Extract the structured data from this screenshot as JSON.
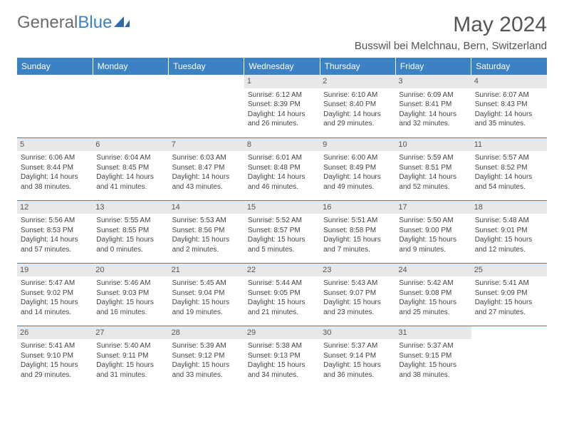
{
  "logo": {
    "text_gray": "General",
    "text_blue": "Blue"
  },
  "title": "May 2024",
  "location": "Busswil bei Melchnau, Bern, Switzerland",
  "colors": {
    "header_bg": "#3b82c4",
    "header_text": "#ffffff",
    "daynum_bg": "#e8e8e8",
    "row_border": "#3b82c4",
    "body_text": "#444444",
    "title_text": "#555555"
  },
  "weekdays": [
    "Sunday",
    "Monday",
    "Tuesday",
    "Wednesday",
    "Thursday",
    "Friday",
    "Saturday"
  ],
  "cells": [
    {
      "day": "",
      "lines": []
    },
    {
      "day": "",
      "lines": []
    },
    {
      "day": "",
      "lines": []
    },
    {
      "day": "1",
      "lines": [
        "Sunrise: 6:12 AM",
        "Sunset: 8:39 PM",
        "Daylight: 14 hours and 26 minutes."
      ]
    },
    {
      "day": "2",
      "lines": [
        "Sunrise: 6:10 AM",
        "Sunset: 8:40 PM",
        "Daylight: 14 hours and 29 minutes."
      ]
    },
    {
      "day": "3",
      "lines": [
        "Sunrise: 6:09 AM",
        "Sunset: 8:41 PM",
        "Daylight: 14 hours and 32 minutes."
      ]
    },
    {
      "day": "4",
      "lines": [
        "Sunrise: 6:07 AM",
        "Sunset: 8:43 PM",
        "Daylight: 14 hours and 35 minutes."
      ]
    },
    {
      "day": "5",
      "lines": [
        "Sunrise: 6:06 AM",
        "Sunset: 8:44 PM",
        "Daylight: 14 hours and 38 minutes."
      ]
    },
    {
      "day": "6",
      "lines": [
        "Sunrise: 6:04 AM",
        "Sunset: 8:45 PM",
        "Daylight: 14 hours and 41 minutes."
      ]
    },
    {
      "day": "7",
      "lines": [
        "Sunrise: 6:03 AM",
        "Sunset: 8:47 PM",
        "Daylight: 14 hours and 43 minutes."
      ]
    },
    {
      "day": "8",
      "lines": [
        "Sunrise: 6:01 AM",
        "Sunset: 8:48 PM",
        "Daylight: 14 hours and 46 minutes."
      ]
    },
    {
      "day": "9",
      "lines": [
        "Sunrise: 6:00 AM",
        "Sunset: 8:49 PM",
        "Daylight: 14 hours and 49 minutes."
      ]
    },
    {
      "day": "10",
      "lines": [
        "Sunrise: 5:59 AM",
        "Sunset: 8:51 PM",
        "Daylight: 14 hours and 52 minutes."
      ]
    },
    {
      "day": "11",
      "lines": [
        "Sunrise: 5:57 AM",
        "Sunset: 8:52 PM",
        "Daylight: 14 hours and 54 minutes."
      ]
    },
    {
      "day": "12",
      "lines": [
        "Sunrise: 5:56 AM",
        "Sunset: 8:53 PM",
        "Daylight: 14 hours and 57 minutes."
      ]
    },
    {
      "day": "13",
      "lines": [
        "Sunrise: 5:55 AM",
        "Sunset: 8:55 PM",
        "Daylight: 15 hours and 0 minutes."
      ]
    },
    {
      "day": "14",
      "lines": [
        "Sunrise: 5:53 AM",
        "Sunset: 8:56 PM",
        "Daylight: 15 hours and 2 minutes."
      ]
    },
    {
      "day": "15",
      "lines": [
        "Sunrise: 5:52 AM",
        "Sunset: 8:57 PM",
        "Daylight: 15 hours and 5 minutes."
      ]
    },
    {
      "day": "16",
      "lines": [
        "Sunrise: 5:51 AM",
        "Sunset: 8:58 PM",
        "Daylight: 15 hours and 7 minutes."
      ]
    },
    {
      "day": "17",
      "lines": [
        "Sunrise: 5:50 AM",
        "Sunset: 9:00 PM",
        "Daylight: 15 hours and 9 minutes."
      ]
    },
    {
      "day": "18",
      "lines": [
        "Sunrise: 5:48 AM",
        "Sunset: 9:01 PM",
        "Daylight: 15 hours and 12 minutes."
      ]
    },
    {
      "day": "19",
      "lines": [
        "Sunrise: 5:47 AM",
        "Sunset: 9:02 PM",
        "Daylight: 15 hours and 14 minutes."
      ]
    },
    {
      "day": "20",
      "lines": [
        "Sunrise: 5:46 AM",
        "Sunset: 9:03 PM",
        "Daylight: 15 hours and 16 minutes."
      ]
    },
    {
      "day": "21",
      "lines": [
        "Sunrise: 5:45 AM",
        "Sunset: 9:04 PM",
        "Daylight: 15 hours and 19 minutes."
      ]
    },
    {
      "day": "22",
      "lines": [
        "Sunrise: 5:44 AM",
        "Sunset: 9:05 PM",
        "Daylight: 15 hours and 21 minutes."
      ]
    },
    {
      "day": "23",
      "lines": [
        "Sunrise: 5:43 AM",
        "Sunset: 9:07 PM",
        "Daylight: 15 hours and 23 minutes."
      ]
    },
    {
      "day": "24",
      "lines": [
        "Sunrise: 5:42 AM",
        "Sunset: 9:08 PM",
        "Daylight: 15 hours and 25 minutes."
      ]
    },
    {
      "day": "25",
      "lines": [
        "Sunrise: 5:41 AM",
        "Sunset: 9:09 PM",
        "Daylight: 15 hours and 27 minutes."
      ]
    },
    {
      "day": "26",
      "lines": [
        "Sunrise: 5:41 AM",
        "Sunset: 9:10 PM",
        "Daylight: 15 hours and 29 minutes."
      ]
    },
    {
      "day": "27",
      "lines": [
        "Sunrise: 5:40 AM",
        "Sunset: 9:11 PM",
        "Daylight: 15 hours and 31 minutes."
      ]
    },
    {
      "day": "28",
      "lines": [
        "Sunrise: 5:39 AM",
        "Sunset: 9:12 PM",
        "Daylight: 15 hours and 33 minutes."
      ]
    },
    {
      "day": "29",
      "lines": [
        "Sunrise: 5:38 AM",
        "Sunset: 9:13 PM",
        "Daylight: 15 hours and 34 minutes."
      ]
    },
    {
      "day": "30",
      "lines": [
        "Sunrise: 5:37 AM",
        "Sunset: 9:14 PM",
        "Daylight: 15 hours and 36 minutes."
      ]
    },
    {
      "day": "31",
      "lines": [
        "Sunrise: 5:37 AM",
        "Sunset: 9:15 PM",
        "Daylight: 15 hours and 38 minutes."
      ]
    },
    {
      "day": "",
      "lines": []
    }
  ]
}
